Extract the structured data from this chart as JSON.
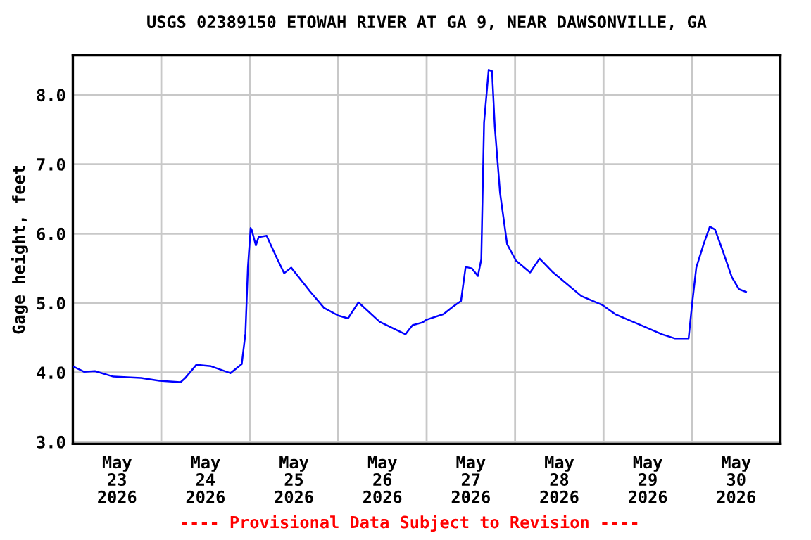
{
  "chart_data": {
    "type": "line",
    "title": "USGS 02389150 ETOWAH RIVER AT GA 9, NEAR DAWSONVILLE, GA",
    "ylabel": "Gage height, feet",
    "annotations": [
      "---- Provisional Data Subject to Revision ----"
    ],
    "x": [
      "2026-05-23T00:00",
      "2026-05-23T03:00",
      "2026-05-23T06:00",
      "2026-05-23T11:00",
      "2026-05-23T18:30",
      "2026-05-23T23:30",
      "2026-05-24T05:15",
      "2026-05-24T06:30",
      "2026-05-24T09:30",
      "2026-05-24T13:30",
      "2026-05-24T18:45",
      "2026-05-24T21:50",
      "2026-05-24T22:50",
      "2026-05-24T23:30",
      "2026-05-25T00:15",
      "2026-05-25T00:30",
      "2026-05-25T01:40",
      "2026-05-25T02:25",
      "2026-05-25T04:35",
      "2026-05-25T07:25",
      "2026-05-25T09:20",
      "2026-05-25T11:15",
      "2026-05-25T16:20",
      "2026-05-25T20:10",
      "2026-05-26T00:00",
      "2026-05-26T02:40",
      "2026-05-26T05:30",
      "2026-05-26T11:15",
      "2026-05-26T15:10",
      "2026-05-26T18:15",
      "2026-05-26T20:10",
      "2026-05-26T22:50",
      "2026-05-27T00:00",
      "2026-05-27T04:35",
      "2026-05-27T07:10",
      "2026-05-27T09:20",
      "2026-05-27T10:35",
      "2026-05-27T12:15",
      "2026-05-27T13:55",
      "2026-05-27T14:50",
      "2026-05-27T15:35",
      "2026-05-27T16:50",
      "2026-05-27T17:45",
      "2026-05-27T18:30",
      "2026-05-27T19:55",
      "2026-05-27T21:50",
      "2026-05-28T00:15",
      "2026-05-28T04:05",
      "2026-05-28T06:40",
      "2026-05-28T10:20",
      "2026-05-28T18:00",
      "2026-05-28T23:45",
      "2026-05-29T03:10",
      "2026-05-29T09:20",
      "2026-05-29T15:50",
      "2026-05-29T19:25",
      "2026-05-29T23:05",
      "2026-05-30T00:00",
      "2026-05-30T01:10",
      "2026-05-30T03:10",
      "2026-05-30T04:50",
      "2026-05-30T06:15",
      "2026-05-30T08:10",
      "2026-05-30T10:50",
      "2026-05-30T12:45",
      "2026-05-30T14:40"
    ],
    "series": [
      {
        "color": "#0000ff",
        "values": [
          4.09,
          4.01,
          4.02,
          3.94,
          3.92,
          3.88,
          3.86,
          3.92,
          4.11,
          4.09,
          3.99,
          4.12,
          4.56,
          5.51,
          6.08,
          6.06,
          5.83,
          5.95,
          5.97,
          5.64,
          5.43,
          5.51,
          5.17,
          4.93,
          4.82,
          4.78,
          5.01,
          4.73,
          4.63,
          4.55,
          4.68,
          4.72,
          4.76,
          4.84,
          4.95,
          5.03,
          5.52,
          5.5,
          5.39,
          5.63,
          7.6,
          8.36,
          8.34,
          7.54,
          6.59,
          5.85,
          5.61,
          5.44,
          5.64,
          5.44,
          5.1,
          4.97,
          4.84,
          4.7,
          4.55,
          4.49,
          4.49,
          4.97,
          5.51,
          5.85,
          6.1,
          6.06,
          5.78,
          5.37,
          5.2,
          5.16
        ]
      }
    ],
    "xlim": [
      "2026-05-23T00:00",
      "2026-05-31T00:00"
    ],
    "xticks": [
      {
        "value": "2026-05-24T00:00",
        "label": null
      },
      {
        "value": "2026-05-25T00:00",
        "label": null
      },
      {
        "value": "2026-05-26T00:00",
        "label": null
      },
      {
        "value": "2026-05-27T00:00",
        "label": null
      },
      {
        "value": "2026-05-28T00:00",
        "label": null
      },
      {
        "value": "2026-05-29T00:00",
        "label": null
      },
      {
        "value": "2026-05-30T00:00",
        "label": null
      },
      {
        "value": "2026-05-23T12:00",
        "label": "May\n23\n2026"
      },
      {
        "value": "2026-05-24T12:00",
        "label": "May\n24\n2026"
      },
      {
        "value": "2026-05-25T12:00",
        "label": "May\n25\n2026"
      },
      {
        "value": "2026-05-26T12:00",
        "label": "May\n26\n2026"
      },
      {
        "value": "2026-05-27T12:00",
        "label": "May\n27\n2026"
      },
      {
        "value": "2026-05-28T12:00",
        "label": "May\n28\n2026"
      },
      {
        "value": "2026-05-29T12:00",
        "label": "May\n29\n2026"
      },
      {
        "value": "2026-05-30T12:00",
        "label": "May\n30\n2026"
      }
    ],
    "ylim": [
      2.97,
      8.57
    ],
    "yticks": [
      {
        "value": 3,
        "label": "3.0"
      },
      {
        "value": 4,
        "label": "4.0"
      },
      {
        "value": 5,
        "label": "5.0"
      },
      {
        "value": 6,
        "label": "6.0"
      },
      {
        "value": 7,
        "label": "7.0"
      },
      {
        "value": 8,
        "label": "8.0"
      }
    ],
    "grid": true,
    "marker": "none",
    "line_style": "solid"
  }
}
